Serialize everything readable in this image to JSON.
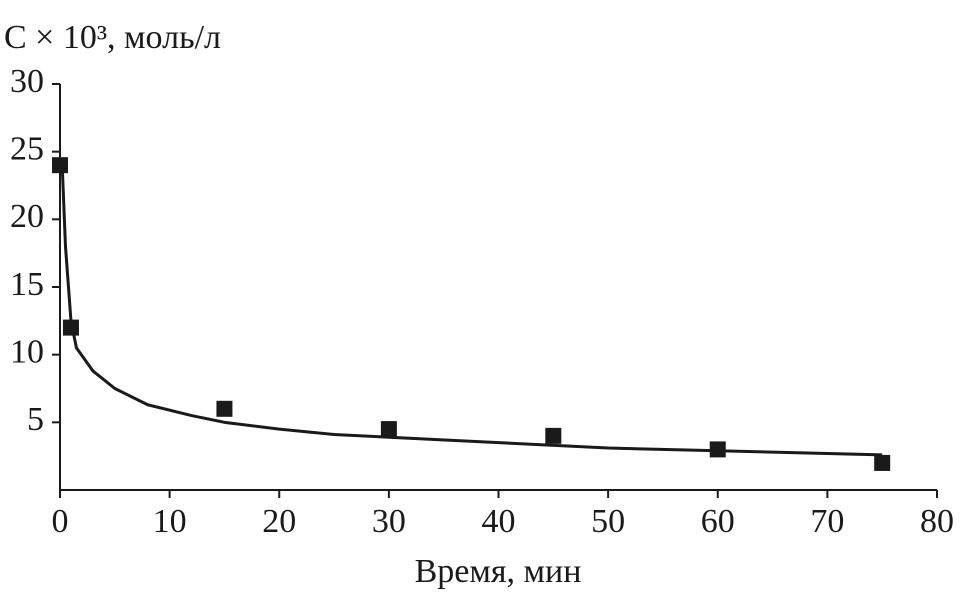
{
  "chart_data": {
    "type": "scatter",
    "y_label": "C × 10³, моль/л",
    "x_label": "Время, мин",
    "xlim": [
      0,
      80
    ],
    "xticks": [
      0,
      10,
      20,
      30,
      40,
      50,
      60,
      70,
      80
    ],
    "ylim": [
      0,
      30
    ],
    "yticks": [
      5,
      10,
      15,
      20,
      25,
      30
    ],
    "series": [
      {
        "type": "scatter",
        "color": "#1a1a1a",
        "x": [
          0,
          1,
          15,
          30,
          45,
          60,
          75
        ],
        "values": [
          24,
          12,
          6,
          4.5,
          4,
          3,
          2
        ]
      },
      {
        "type": "line",
        "color": "#1a1a1a",
        "x": [
          0.2,
          0.5,
          1,
          1.5,
          3,
          5,
          8,
          12,
          15,
          20,
          25,
          30,
          40,
          50,
          60,
          75
        ],
        "values": [
          24,
          18,
          12.5,
          10.5,
          8.8,
          7.5,
          6.3,
          5.5,
          5,
          4.5,
          4.1,
          3.9,
          3.5,
          3.1,
          2.9,
          2.6
        ]
      }
    ]
  }
}
